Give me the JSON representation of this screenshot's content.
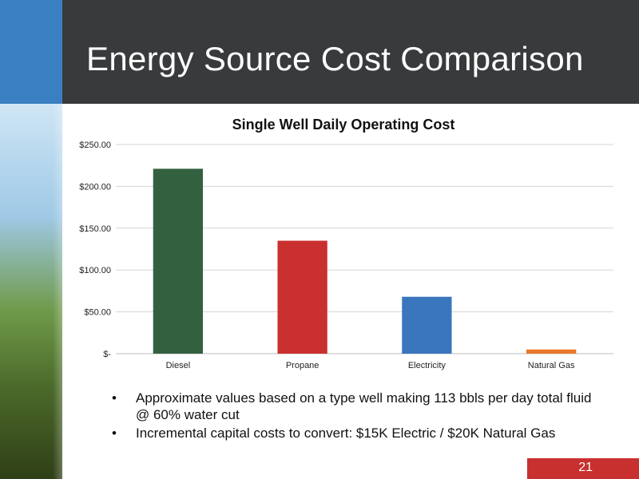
{
  "slide": {
    "title": "Energy Source Cost Comparison",
    "page_number": "21",
    "bullets": [
      "Approximate values based on a type well making 113 bbls per day total fluid @ 60% water cut",
      "Incremental capital costs to convert:  $15K Electric / $20K Natural Gas"
    ]
  },
  "colors": {
    "header_bg": "#383a3c",
    "accent_blue": "#3a7fc2",
    "page_box": "#c8302f"
  },
  "chart_data": {
    "type": "bar",
    "title": "Single Well Daily Operating Cost",
    "categories": [
      "Diesel",
      "Propane",
      "Electricity",
      "Natural Gas"
    ],
    "values": [
      221,
      135,
      68,
      5
    ],
    "bar_colors": [
      "#336140",
      "#c9302f",
      "#3a76bd",
      "#e9782a"
    ],
    "ylim": [
      0,
      250
    ],
    "yticks": [
      0,
      50,
      100,
      150,
      200,
      250
    ],
    "ytick_labels": [
      "$-",
      "$50.00",
      "$100.00",
      "$150.00",
      "$200.00",
      "$250.00"
    ],
    "grid": true,
    "legend": "none"
  }
}
